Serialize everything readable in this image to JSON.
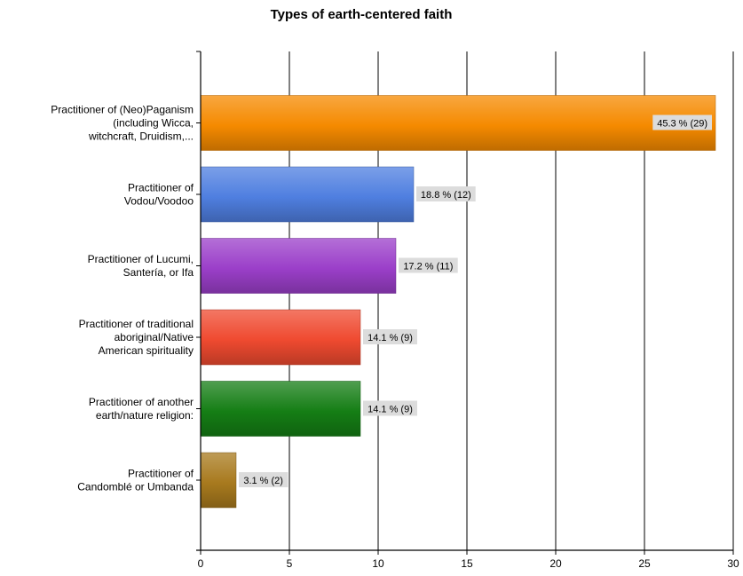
{
  "chart_data": {
    "type": "bar",
    "orientation": "horizontal",
    "title": "Types of earth-centered faith",
    "xlabel": "",
    "ylabel": "",
    "xlim": [
      0,
      30
    ],
    "ticks": [
      0,
      5,
      10,
      15,
      20,
      25,
      30
    ],
    "grid": true,
    "categories": [
      [
        "Practitioner of (Neo)Paganism",
        "(including Wicca,",
        "witchcraft, Druidism,..."
      ],
      [
        "Practitioner of",
        "Vodou/Voodoo"
      ],
      [
        "Practitioner of Lucumi,",
        "Santería, or Ifa"
      ],
      [
        "Practitioner of traditional",
        "aboriginal/Native",
        "American spirituality"
      ],
      [
        "Practitioner of another",
        "earth/nature religion:"
      ],
      [
        "Practitioner of",
        "Candomblé or Umbanda"
      ]
    ],
    "values": [
      29,
      12,
      11,
      9,
      9,
      2
    ],
    "data_labels": [
      "45.3 % (29)",
      "18.8 % (12)",
      "17.2 % (11)",
      "14.1 % (9)",
      "14.1 % (9)",
      "3.1 % (2)"
    ],
    "colors": [
      "#F58A00",
      "#4F7FE0",
      "#9B3FC9",
      "#EF4A30",
      "#157E15",
      "#A87A1E"
    ]
  }
}
